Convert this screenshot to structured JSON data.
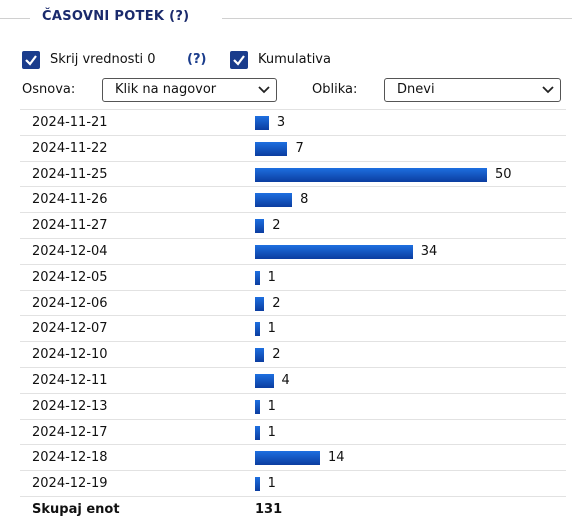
{
  "header": {
    "title": "ČASOVNI POTEK (?)"
  },
  "controls": {
    "hide_zero": {
      "label": "Skrij vrednosti 0",
      "help": "(?)",
      "checked": true
    },
    "cumulative": {
      "label": "Kumulativa",
      "checked": true
    },
    "basis": {
      "label": "Osnova:",
      "value": "Klik na nagovor"
    },
    "shape": {
      "label": "Oblika:",
      "value": "Dnevi"
    }
  },
  "table": {
    "rows": [
      {
        "date": "2024-11-21",
        "value": 3
      },
      {
        "date": "2024-11-22",
        "value": 7
      },
      {
        "date": "2024-11-25",
        "value": 50
      },
      {
        "date": "2024-11-26",
        "value": 8
      },
      {
        "date": "2024-11-27",
        "value": 2
      },
      {
        "date": "2024-12-04",
        "value": 34
      },
      {
        "date": "2024-12-05",
        "value": 1
      },
      {
        "date": "2024-12-06",
        "value": 2
      },
      {
        "date": "2024-12-07",
        "value": 1
      },
      {
        "date": "2024-12-10",
        "value": 2
      },
      {
        "date": "2024-12-11",
        "value": 4
      },
      {
        "date": "2024-12-13",
        "value": 1
      },
      {
        "date": "2024-12-17",
        "value": 1
      },
      {
        "date": "2024-12-18",
        "value": 14
      },
      {
        "date": "2024-12-19",
        "value": 1
      }
    ],
    "total": {
      "label": "Skupaj enot",
      "value": 131
    }
  }
}
